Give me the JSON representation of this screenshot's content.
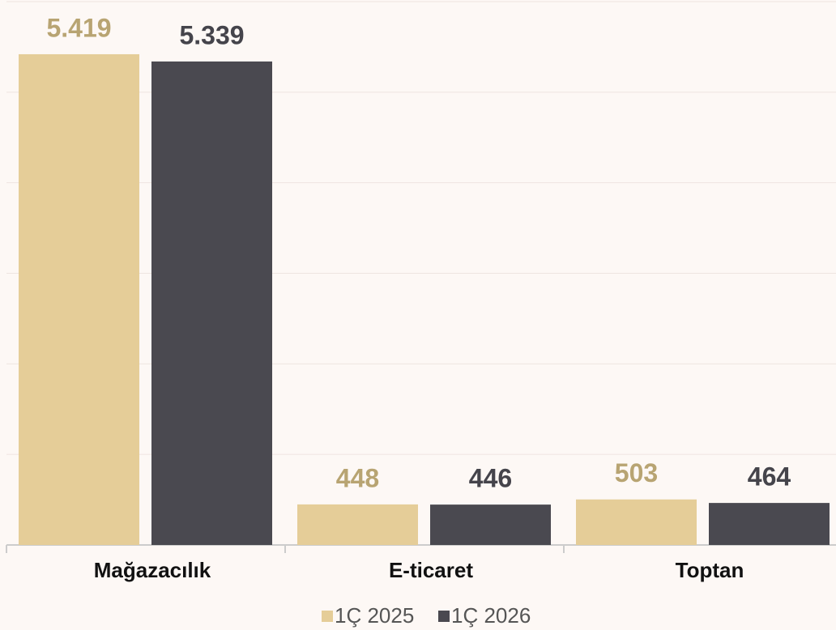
{
  "chart_data": {
    "type": "bar",
    "categories": [
      "Mağazacılık",
      "E-ticaret",
      "Toptan"
    ],
    "series": [
      {
        "name": "1Ç 2025",
        "color": "#e5cd98",
        "label_color": "#b8a472",
        "values": [
          5419,
          448,
          503
        ],
        "value_labels": [
          "5.419",
          "448",
          "503"
        ]
      },
      {
        "name": "1Ç 2026",
        "color": "#4a4950",
        "label_color": "#45444b",
        "values": [
          5339,
          446,
          464
        ],
        "value_labels": [
          "5.339",
          "446",
          "464"
        ]
      }
    ],
    "ylim": [
      0,
      6000
    ],
    "yticks": [
      0,
      1000,
      2000,
      3000,
      4000,
      5000,
      6000
    ],
    "grid": true,
    "legend": "bottom"
  }
}
